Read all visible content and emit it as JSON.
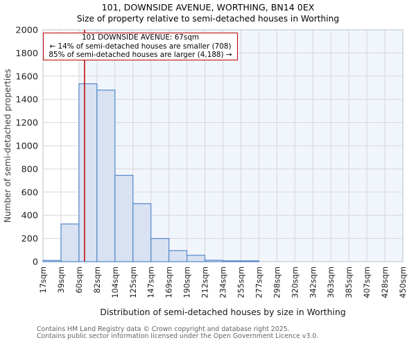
{
  "title": "101, DOWNSIDE AVENUE, WORTHING, BN14 0EX",
  "subtitle": "Size of property relative to semi-detached houses in Worthing",
  "annotation": {
    "line1": "101 DOWNSIDE AVENUE: 67sqm",
    "line2": "← 14% of semi-detached houses are smaller (708)",
    "line3": "85% of semi-detached houses are larger (4,188) →"
  },
  "chart_data": {
    "type": "bar",
    "title": "101, DOWNSIDE AVENUE, WORTHING, BN14 0EX",
    "subtitle": "Size of property relative to semi-detached houses in Worthing",
    "xlabel": "Distribution of semi-detached houses by size in Worthing",
    "ylabel": "Number of semi-detached properties",
    "bin_labels": [
      "17sqm",
      "39sqm",
      "60sqm",
      "82sqm",
      "104sqm",
      "125sqm",
      "147sqm",
      "169sqm",
      "190sqm",
      "212sqm",
      "234sqm",
      "255sqm",
      "277sqm",
      "298sqm",
      "320sqm",
      "342sqm",
      "363sqm",
      "385sqm",
      "407sqm",
      "428sqm",
      "450sqm"
    ],
    "bin_edges_sqm": [
      17,
      39,
      60,
      82,
      104,
      125,
      147,
      169,
      190,
      212,
      234,
      255,
      277,
      298,
      320,
      342,
      363,
      385,
      407,
      428,
      450
    ],
    "values": [
      10,
      325,
      1535,
      1480,
      745,
      500,
      200,
      95,
      55,
      12,
      7,
      7,
      0,
      0,
      0,
      0,
      0,
      0,
      0,
      0
    ],
    "ylim": [
      0,
      2000
    ],
    "ytick_step": 200,
    "grid": true,
    "legend": false,
    "property_line_sqm": 67,
    "shaded_region_from_sqm": 60
  },
  "footer": {
    "line1": "Contains HM Land Registry data © Crown copyright and database right 2025.",
    "line2": "Contains public sector information licensed under the Open Government Licence v3.0."
  },
  "colors": {
    "bar_fill": "#d8e2f3",
    "bar_edge": "#5588c7",
    "marker_line": "#bf0000",
    "annotation_border": "#bf0000",
    "shaded_region": "#f1f5fc",
    "grid": "#d7d7d7",
    "plot_border": "#c6cad2",
    "tick_text": "#202020",
    "background": "#ffffff"
  }
}
